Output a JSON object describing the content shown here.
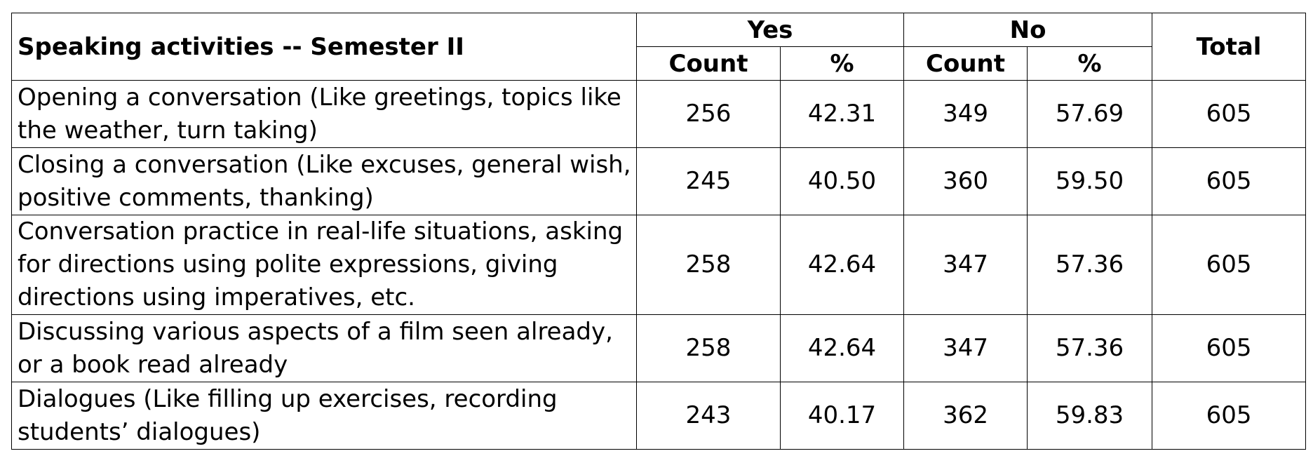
{
  "table": {
    "corner_label": "Speaking activities -- Semester II",
    "groups": [
      {
        "label": "Yes",
        "subs": [
          "Count",
          "%"
        ]
      },
      {
        "label": "No",
        "subs": [
          "Count",
          "%"
        ]
      }
    ],
    "total_label": "Total",
    "rows": [
      {
        "activity": "Opening a conversation (Like greetings, topics like the weather, turn taking)",
        "yes_count": "256",
        "yes_pct": "42.31",
        "no_count": "349",
        "no_pct": "57.69",
        "total": "605"
      },
      {
        "activity": "Closing a conversation (Like excuses, general wish, positive comments, thanking)",
        "yes_count": "245",
        "yes_pct": "40.50",
        "no_count": "360",
        "no_pct": "59.50",
        "total": "605"
      },
      {
        "activity": "Conversation practice in real-life situations, asking for directions using polite expressions, giving directions using imperatives, etc.",
        "yes_count": "258",
        "yes_pct": "42.64",
        "no_count": "347",
        "no_pct": "57.36",
        "total": "605"
      },
      {
        "activity": "Discussing various aspects of a film seen already, or a book read already",
        "yes_count": "258",
        "yes_pct": "42.64",
        "no_count": "347",
        "no_pct": "57.36",
        "total": "605"
      },
      {
        "activity": "Dialogues (Like filling up exercises, recording students’ dialogues)",
        "yes_count": "243",
        "yes_pct": "40.17",
        "no_count": "362",
        "no_pct": "59.83",
        "total": "605"
      }
    ]
  }
}
